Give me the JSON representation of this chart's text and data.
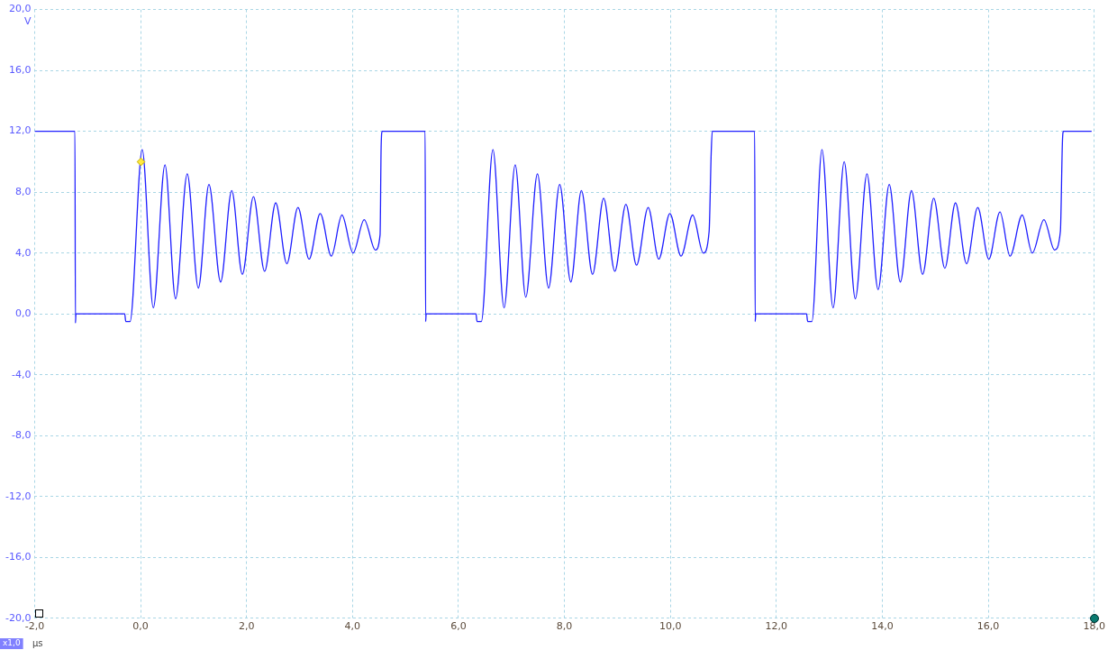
{
  "chart_data": {
    "type": "line",
    "xlabel": "µs",
    "ylabel": "V",
    "annotations": [
      "x1,0"
    ],
    "x": [
      -2,
      -1.24,
      -1.23,
      -1.22,
      -0.3,
      -0.28,
      -0.2,
      0.03,
      0.24,
      0.46,
      0.66,
      0.88,
      1.09,
      1.29,
      1.51,
      1.72,
      1.92,
      2.13,
      2.34,
      2.55,
      2.76,
      2.97,
      3.18,
      3.39,
      3.6,
      3.8,
      4.01,
      4.22,
      4.43,
      4.52,
      4.54,
      4.56,
      5.37,
      5.38,
      5.39,
      6.33,
      6.35,
      6.43,
      6.65,
      6.86,
      7.07,
      7.27,
      7.49,
      7.7,
      7.91,
      8.12,
      8.32,
      8.53,
      8.74,
      8.95,
      9.16,
      9.36,
      9.58,
      9.78,
      9.99,
      10.2,
      10.42,
      10.62,
      10.73,
      10.77,
      10.79,
      11.59,
      11.6,
      11.61,
      12.57,
      12.59,
      12.67,
      12.86,
      13.07,
      13.28,
      13.49,
      13.71,
      13.92,
      14.13,
      14.34,
      14.55,
      14.76,
      14.97,
      15.18,
      15.38,
      15.59,
      15.8,
      16.01,
      16.22,
      16.41,
      16.64,
      16.83,
      17.05,
      17.25,
      17.36,
      17.4,
      17.42,
      17.95
    ],
    "series": [
      {
        "color": "#1f1fff",
        "values": [
          12,
          12,
          -0.6,
          0,
          0,
          -0.5,
          -0.5,
          10.8,
          0.4,
          9.8,
          1.0,
          9.2,
          1.7,
          8.5,
          2.1,
          8.1,
          2.6,
          7.7,
          2.8,
          7.3,
          3.3,
          7.0,
          3.6,
          6.6,
          3.8,
          6.5,
          4.0,
          6.2,
          4.2,
          5.2,
          11,
          12,
          12,
          -0.5,
          0,
          0,
          -0.5,
          -0.5,
          10.8,
          0.4,
          9.8,
          1.1,
          9.2,
          1.7,
          8.5,
          2.1,
          8.1,
          2.6,
          7.6,
          2.8,
          7.2,
          3.2,
          7.0,
          3.6,
          6.6,
          3.8,
          6.5,
          4.0,
          5.4,
          10.6,
          12,
          12,
          -0.5,
          0,
          0,
          -0.5,
          -0.5,
          10.8,
          0.4,
          10.0,
          1.0,
          9.2,
          1.6,
          8.5,
          2.1,
          8.1,
          2.6,
          7.6,
          3.0,
          7.3,
          3.3,
          7.0,
          3.6,
          6.7,
          3.8,
          6.5,
          4.0,
          6.2,
          4.2,
          5.4,
          11.4,
          12,
          12
        ]
      }
    ],
    "xlim": [
      -2,
      18
    ],
    "ylim": [
      -20,
      20
    ],
    "xticks": [
      {
        "value": -2,
        "label": "-2,0"
      },
      {
        "value": 0,
        "label": "0,0"
      },
      {
        "value": 2,
        "label": "2,0"
      },
      {
        "value": 4,
        "label": "4,0"
      },
      {
        "value": 6,
        "label": "6,0"
      },
      {
        "value": 8,
        "label": "8,0"
      },
      {
        "value": 10,
        "label": "10,0"
      },
      {
        "value": 12,
        "label": "12,0"
      },
      {
        "value": 14,
        "label": "14,0"
      },
      {
        "value": 16,
        "label": "16,0"
      },
      {
        "value": 18,
        "label": "18,0"
      }
    ],
    "yticks": [
      {
        "value": -20,
        "label": "-20,0"
      },
      {
        "value": -16,
        "label": "-16,0"
      },
      {
        "value": -12,
        "label": "-12,0"
      },
      {
        "value": -8,
        "label": "-8,0"
      },
      {
        "value": -4,
        "label": "-4,0"
      },
      {
        "value": 0,
        "label": "0,0"
      },
      {
        "value": 4,
        "label": "4,0"
      },
      {
        "value": 8,
        "label": "8,0"
      },
      {
        "value": 12,
        "label": "12,0"
      },
      {
        "value": 16,
        "label": "16,0"
      },
      {
        "value": 20,
        "label": "20,0"
      }
    ],
    "grid": true,
    "marker": "none",
    "line_style": "solid"
  }
}
